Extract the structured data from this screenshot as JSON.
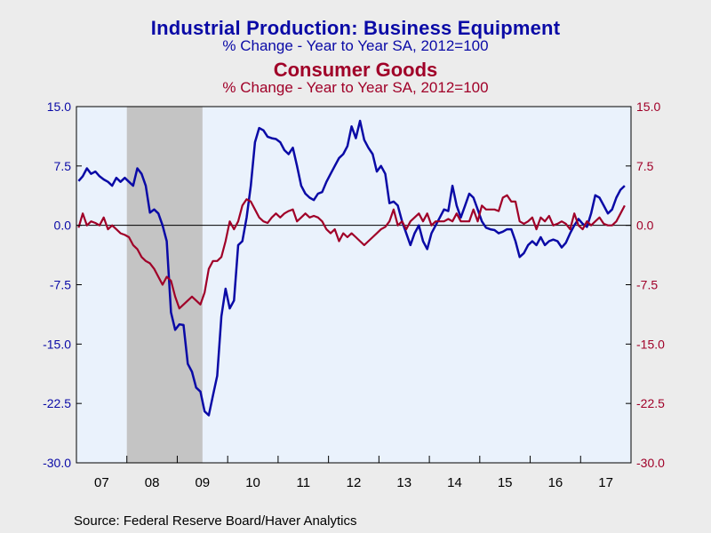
{
  "chart_data": {
    "type": "line",
    "titles": [
      "Industrial Production: Business Equipment",
      "% Change - Year to Year    SA, 2012=100",
      "Consumer Goods",
      "% Change - Year to Year    SA, 2012=100"
    ],
    "source": "Source:  Federal Reserve Board/Haver Analytics",
    "x_start": "2007-01",
    "x_end": "2017-12",
    "ylim": [
      -30,
      15
    ],
    "yticks": [
      15,
      7.5,
      0,
      -7.5,
      -15,
      -22.5,
      -30
    ],
    "ytick_labels": [
      "15.0",
      "7.5",
      "0.0",
      "-7.5",
      "-15.0",
      "-22.5",
      "-30.0"
    ],
    "xtick_labels": [
      "07",
      "08",
      "09",
      "10",
      "11",
      "12",
      "13",
      "14",
      "15",
      "16",
      "17"
    ],
    "recession": [
      "2008-01",
      "2009-06"
    ],
    "zero_line": true,
    "grid": false,
    "series": [
      {
        "color": "#0a0aa6",
        "axis": "left",
        "values": [
          5.6,
          6.2,
          7.2,
          6.5,
          6.8,
          6.2,
          5.8,
          5.5,
          5.0,
          6.0,
          5.5,
          6.0,
          5.5,
          5.0,
          7.2,
          6.5,
          5.0,
          1.6,
          2.0,
          1.5,
          0.0,
          -2.0,
          -11.0,
          -13.2,
          -12.5,
          -12.6,
          -17.5,
          -18.5,
          -20.5,
          -21.0,
          -23.5,
          -24.0,
          -21.5,
          -19.0,
          -11.5,
          -8.0,
          -10.5,
          -9.5,
          -2.5,
          -2.0,
          1.0,
          5.0,
          10.5,
          12.3,
          12.0,
          11.2,
          11.0,
          10.9,
          10.5,
          9.5,
          9.0,
          9.8,
          7.5,
          5.0,
          4.0,
          3.5,
          3.2,
          4.0,
          4.2,
          5.5,
          6.5,
          7.5,
          8.5,
          9.0,
          10.0,
          12.5,
          11.0,
          13.2,
          10.8,
          9.8,
          9.0,
          6.8,
          7.5,
          6.5,
          2.8,
          3.0,
          2.5,
          0.5,
          -1.0,
          -2.5,
          -1.0,
          0.0,
          -2.0,
          -3.0,
          -1.0,
          0.0,
          1.0,
          2.0,
          1.8,
          5.0,
          2.5,
          1.0,
          2.5,
          4.0,
          3.5,
          2.0,
          0.5,
          -0.3,
          -0.5,
          -0.6,
          -1.0,
          -0.8,
          -0.5,
          -0.5,
          -2.0,
          -4.0,
          -3.5,
          -2.5,
          -2.0,
          -2.5,
          -1.5,
          -2.5,
          -2.0,
          -1.8,
          -2.0,
          -2.8,
          -2.2,
          -1.0,
          0.0,
          0.8,
          0.2,
          -0.2,
          1.5,
          3.8,
          3.5,
          2.5,
          1.5,
          2.0,
          3.5,
          4.5,
          5.0
        ]
      },
      {
        "color": "#a00028",
        "axis": "right",
        "values": [
          -0.3,
          1.5,
          0.0,
          0.5,
          0.3,
          0.0,
          1.0,
          -0.5,
          0.0,
          -0.5,
          -1.0,
          -1.2,
          -1.5,
          -2.5,
          -3.0,
          -4.0,
          -4.5,
          -4.8,
          -5.5,
          -6.5,
          -7.5,
          -6.5,
          -7.0,
          -9.0,
          -10.5,
          -10.0,
          -9.5,
          -9.0,
          -9.5,
          -10.0,
          -8.5,
          -5.5,
          -4.5,
          -4.5,
          -4.0,
          -2.0,
          0.5,
          -0.5,
          0.5,
          2.5,
          3.3,
          3.0,
          2.0,
          1.0,
          0.5,
          0.3,
          1.0,
          1.5,
          1.0,
          1.5,
          1.8,
          2.0,
          0.5,
          1.0,
          1.5,
          1.0,
          1.2,
          1.0,
          0.5,
          -0.5,
          -1.0,
          -0.5,
          -2.0,
          -1.0,
          -1.5,
          -1.0,
          -1.5,
          -2.0,
          -2.5,
          -2.0,
          -1.5,
          -1.0,
          -0.5,
          -0.2,
          0.5,
          2.0,
          0.0,
          0.5,
          -0.5,
          0.5,
          1.0,
          1.5,
          0.5,
          1.5,
          0.0,
          0.5,
          0.5,
          0.5,
          0.8,
          0.5,
          1.5,
          0.5,
          0.5,
          0.5,
          2.0,
          0.5,
          2.5,
          2.0,
          2.0,
          2.0,
          1.8,
          3.5,
          3.8,
          3.0,
          3.0,
          0.5,
          0.2,
          0.5,
          1.0,
          -0.5,
          1.0,
          0.5,
          1.2,
          0.0,
          0.2,
          0.5,
          0.2,
          -0.5,
          1.5,
          0.0,
          -0.5,
          0.5,
          0.0,
          0.5,
          1.0,
          0.2,
          0.0,
          0.0,
          0.5,
          1.5,
          2.5
        ]
      }
    ]
  }
}
